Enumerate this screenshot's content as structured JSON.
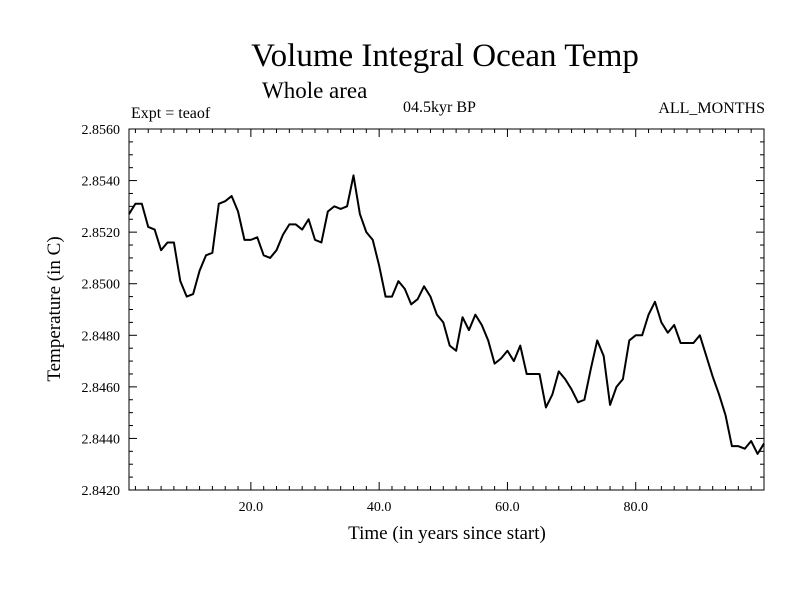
{
  "chart_data": {
    "type": "line",
    "title": "Volume Integral Ocean Temp",
    "subtitle": "Whole area",
    "experiment": "Expt = teaof",
    "period": "04.5kyr BP",
    "months": "ALL_MONTHS",
    "xlabel": "Time (in years since start)",
    "ylabel": "Temperature (in C)",
    "xlim": [
      1,
      100
    ],
    "ylim": [
      2.842,
      2.856
    ],
    "xticks": [
      20,
      40,
      60,
      80
    ],
    "xtick_labels": [
      "20.0",
      "40.0",
      "60.0",
      "80.0"
    ],
    "yticks": [
      2.842,
      2.844,
      2.846,
      2.848,
      2.85,
      2.852,
      2.854,
      2.856
    ],
    "ytick_labels": [
      "2.8420",
      "2.8440",
      "2.8460",
      "2.8480",
      "2.8500",
      "2.8520",
      "2.8540",
      "2.8560"
    ],
    "x_start": 1,
    "x_step": 1,
    "values": [
      2.8527,
      2.8531,
      2.8531,
      2.8522,
      2.8521,
      2.8513,
      2.8516,
      2.8516,
      2.8501,
      2.8495,
      2.8496,
      2.8505,
      2.8511,
      2.8512,
      2.8531,
      2.8532,
      2.8534,
      2.8528,
      2.8517,
      2.8517,
      2.8518,
      2.8511,
      2.851,
      2.8513,
      2.8519,
      2.8523,
      2.8523,
      2.8521,
      2.8525,
      2.8517,
      2.8516,
      2.8528,
      2.853,
      2.8529,
      2.853,
      2.8542,
      2.8527,
      2.852,
      2.8517,
      2.8507,
      2.8495,
      2.8495,
      2.8501,
      2.8498,
      2.8492,
      2.8494,
      2.8499,
      2.8495,
      2.8488,
      2.8485,
      2.8476,
      2.8474,
      2.8487,
      2.8482,
      2.8488,
      2.8484,
      2.8478,
      2.8469,
      2.8471,
      2.8474,
      2.847,
      2.8476,
      2.8465,
      2.8465,
      2.8465,
      2.8452,
      2.8457,
      2.8466,
      2.8463,
      2.8459,
      2.8454,
      2.8455,
      2.8467,
      2.8478,
      2.8472,
      2.8453,
      2.846,
      2.8463,
      2.8478,
      2.848,
      2.848,
      2.8488,
      2.8493,
      2.8485,
      2.8481,
      2.8484,
      2.8477,
      2.8477,
      2.8477,
      2.848,
      2.8472,
      2.8464,
      2.8457,
      2.8449,
      2.8437,
      2.8437,
      2.8436,
      2.8439,
      2.8434,
      2.8438
    ]
  }
}
